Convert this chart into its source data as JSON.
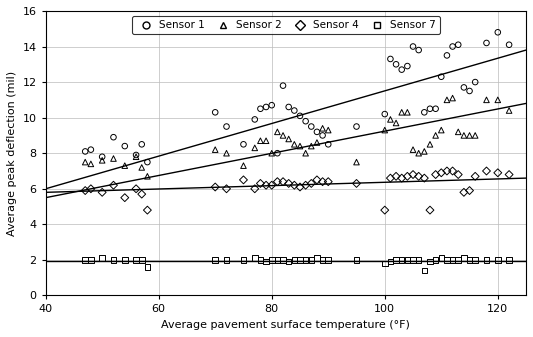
{
  "title": "",
  "xlabel": "Average pavement surface temperature (°F)",
  "ylabel": "Average peak deflection (mil)",
  "xlim": [
    40,
    125
  ],
  "ylim": [
    0,
    16
  ],
  "xticks": [
    40,
    60,
    80,
    100,
    120
  ],
  "yticks": [
    0,
    2,
    4,
    6,
    8,
    10,
    12,
    14,
    16
  ],
  "sensor1_x": [
    47,
    48,
    50,
    52,
    54,
    56,
    57,
    58,
    70,
    72,
    75,
    77,
    78,
    79,
    80,
    81,
    82,
    83,
    84,
    85,
    86,
    87,
    88,
    89,
    90,
    95,
    100,
    101,
    102,
    103,
    104,
    105,
    106,
    107,
    108,
    109,
    110,
    111,
    112,
    113,
    114,
    115,
    116,
    118,
    120,
    122
  ],
  "sensor1_y": [
    8.1,
    8.2,
    7.8,
    8.9,
    8.4,
    7.9,
    8.5,
    7.5,
    10.3,
    9.5,
    8.5,
    9.9,
    10.5,
    10.6,
    10.7,
    8.0,
    11.8,
    10.6,
    10.4,
    10.1,
    9.8,
    9.5,
    9.2,
    9.0,
    8.5,
    9.5,
    10.2,
    13.3,
    13.0,
    12.7,
    12.9,
    14.0,
    13.8,
    10.3,
    10.5,
    10.5,
    12.3,
    13.5,
    14.0,
    14.1,
    11.7,
    11.5,
    12.0,
    14.2,
    14.8,
    14.1
  ],
  "sensor2_x": [
    47,
    48,
    50,
    52,
    54,
    56,
    57,
    58,
    70,
    72,
    75,
    77,
    78,
    79,
    80,
    81,
    82,
    83,
    84,
    85,
    86,
    87,
    88,
    89,
    90,
    95,
    100,
    101,
    102,
    103,
    104,
    105,
    106,
    107,
    108,
    109,
    110,
    111,
    112,
    113,
    114,
    115,
    116,
    118,
    120,
    122
  ],
  "sensor2_y": [
    7.5,
    7.4,
    7.6,
    7.7,
    7.3,
    7.8,
    7.2,
    6.7,
    8.2,
    8.0,
    7.3,
    8.3,
    8.7,
    8.7,
    8.0,
    9.2,
    9.0,
    8.8,
    8.5,
    8.4,
    8.0,
    8.4,
    8.6,
    9.4,
    9.3,
    7.5,
    9.3,
    9.9,
    9.7,
    10.3,
    10.3,
    8.2,
    8.0,
    8.1,
    8.5,
    9.0,
    9.3,
    11.0,
    11.1,
    9.2,
    9.0,
    9.0,
    9.0,
    11.0,
    11.0,
    10.4
  ],
  "sensor4_x": [
    47,
    48,
    50,
    52,
    54,
    56,
    57,
    58,
    70,
    72,
    75,
    77,
    78,
    79,
    80,
    81,
    82,
    83,
    84,
    85,
    86,
    87,
    88,
    89,
    90,
    95,
    100,
    101,
    102,
    103,
    104,
    105,
    106,
    107,
    108,
    109,
    110,
    111,
    112,
    113,
    114,
    115,
    116,
    118,
    120,
    122
  ],
  "sensor4_y": [
    5.9,
    6.0,
    5.8,
    6.2,
    5.5,
    6.0,
    5.7,
    4.8,
    6.1,
    6.0,
    6.5,
    6.0,
    6.3,
    6.2,
    6.2,
    6.4,
    6.4,
    6.3,
    6.2,
    6.1,
    6.2,
    6.3,
    6.5,
    6.4,
    6.4,
    6.3,
    4.8,
    6.6,
    6.7,
    6.6,
    6.7,
    6.8,
    6.7,
    6.6,
    4.8,
    6.8,
    6.9,
    7.0,
    7.0,
    6.8,
    5.8,
    5.9,
    6.7,
    7.0,
    6.9,
    6.8
  ],
  "sensor7_x": [
    47,
    48,
    50,
    52,
    54,
    56,
    57,
    58,
    70,
    72,
    75,
    77,
    78,
    79,
    80,
    81,
    82,
    83,
    84,
    85,
    86,
    87,
    88,
    89,
    90,
    95,
    100,
    101,
    102,
    103,
    104,
    105,
    106,
    107,
    108,
    109,
    110,
    111,
    112,
    113,
    114,
    115,
    116,
    118,
    120,
    122
  ],
  "sensor7_y": [
    2.0,
    2.0,
    2.1,
    2.0,
    2.0,
    2.0,
    2.0,
    1.6,
    2.0,
    2.0,
    2.0,
    2.1,
    2.0,
    1.9,
    2.0,
    2.0,
    2.0,
    1.9,
    2.0,
    2.0,
    2.0,
    2.0,
    2.1,
    2.0,
    2.0,
    2.0,
    1.8,
    1.9,
    2.0,
    2.0,
    2.0,
    2.0,
    2.0,
    1.4,
    1.9,
    2.0,
    2.1,
    2.0,
    2.0,
    2.0,
    2.1,
    2.0,
    2.0,
    2.0,
    2.0,
    2.0
  ],
  "fit_x": [
    40,
    125
  ],
  "fit1_y": [
    6.0,
    13.8
  ],
  "fit2_y": [
    5.5,
    10.8
  ],
  "fit4_y": [
    5.8,
    6.6
  ],
  "fit7_y": [
    1.95,
    1.95
  ],
  "color": "black",
  "legend_labels": [
    "Sensor 1",
    "Sensor 2",
    "Sensor 4",
    "Sensor 7"
  ],
  "markers": [
    "o",
    "^",
    "D",
    "s"
  ],
  "markersize": 4,
  "linewidth": 1.0,
  "background_color": "#ffffff",
  "figsize": [
    5.33,
    3.37
  ],
  "dpi": 100
}
